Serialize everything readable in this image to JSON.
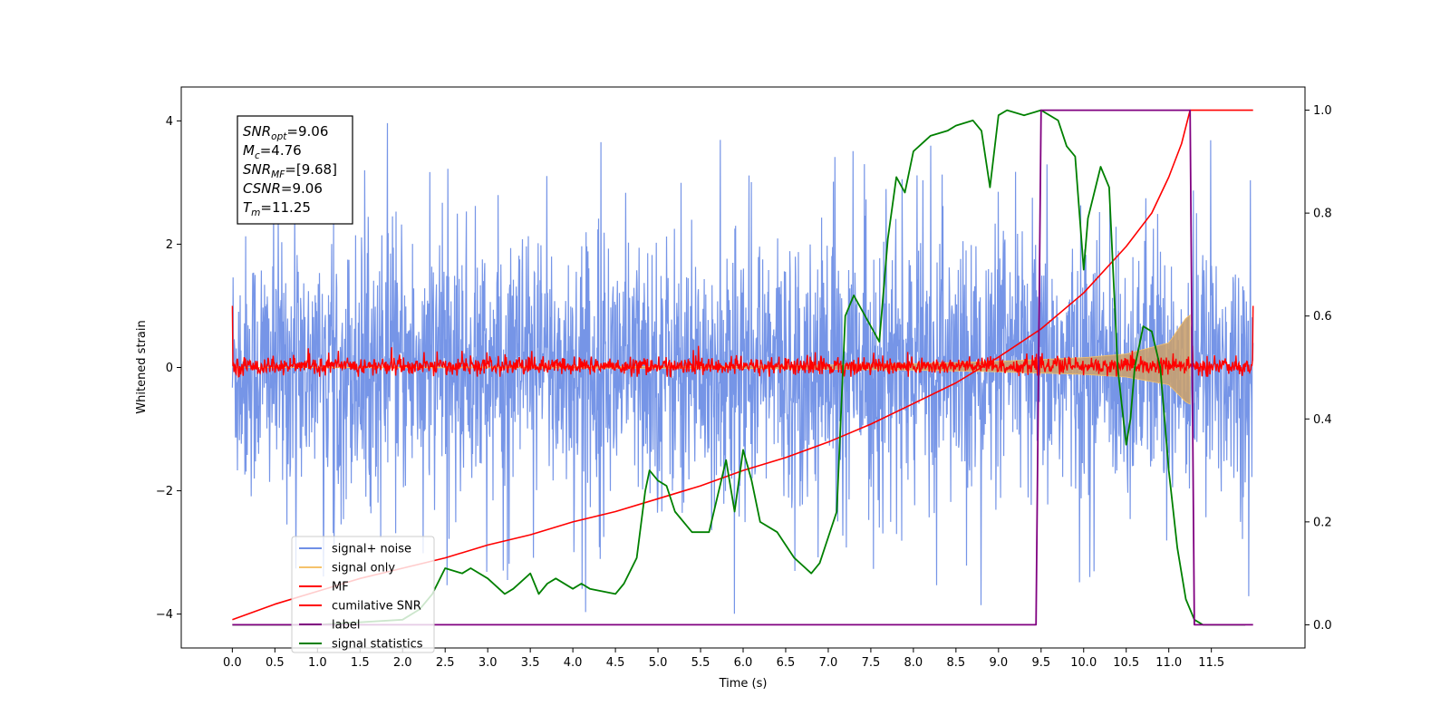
{
  "chart_data": {
    "type": "line",
    "xlabel": "Time (s)",
    "ylabel": "Whitened strain",
    "xlim": [
      -0.6,
      12.6
    ],
    "ylim": [
      -4.55,
      4.55
    ],
    "y2lim": [
      -0.045,
      1.045
    ],
    "x_ticks": [
      0.0,
      0.5,
      1.0,
      1.5,
      2.0,
      2.5,
      3.0,
      3.5,
      4.0,
      4.5,
      5.0,
      5.5,
      6.0,
      6.5,
      7.0,
      7.5,
      8.0,
      8.5,
      9.0,
      9.5,
      10.0,
      10.5,
      11.0,
      11.5
    ],
    "x_tick_labels": [
      "0.0",
      "0.5",
      "1.0",
      "1.5",
      "2.0",
      "2.5",
      "3.0",
      "3.5",
      "4.0",
      "4.5",
      "5.0",
      "5.5",
      "6.0",
      "6.5",
      "7.0",
      "7.5",
      "8.0",
      "8.5",
      "9.0",
      "9.5",
      "10.0",
      "10.5",
      "11.0",
      "11.5"
    ],
    "y_ticks": [
      -4,
      -2,
      0,
      2,
      4
    ],
    "y_tick_labels": [
      "−4",
      "−2",
      "0",
      "2",
      "4"
    ],
    "y2_ticks": [
      0.0,
      0.2,
      0.4,
      0.6,
      0.8,
      1.0
    ],
    "y2_tick_labels": [
      "0.0",
      "0.2",
      "0.4",
      "0.6",
      "0.8",
      "1.0"
    ],
    "grid": false,
    "legend": {
      "placement": "lower-left"
    },
    "annotation": {
      "lines": [
        {
          "main": "SNR",
          "sub": "opt",
          "rest": "=9.06"
        },
        {
          "main": "M",
          "sub": "c",
          "rest": "=4.76"
        },
        {
          "main": "SNR",
          "sub": "MF",
          "rest": "=[9.68]"
        },
        {
          "main": "CSNR",
          "sub": "",
          "rest": "=9.06"
        },
        {
          "main": "T",
          "sub": "m",
          "rest": "=11.25"
        }
      ]
    },
    "series": [
      {
        "name": "signal+ noise",
        "axis": "left",
        "color": "#6f8fe6",
        "style": "noise band",
        "x_range": [
          0.0,
          11.99
        ],
        "envelope": [
          -2.6,
          2.6
        ],
        "peaks": [
          -4.1,
          4.1
        ]
      },
      {
        "name": "signal only",
        "axis": "left",
        "color": "#f5c26b",
        "style": "chirp",
        "x_range": [
          0.0,
          11.25
        ],
        "amplitude_envelope": {
          "x": [
            0.0,
            6.0,
            8.0,
            9.0,
            10.0,
            10.5,
            11.0,
            11.2,
            11.25
          ],
          "y": [
            0.0,
            0.02,
            0.06,
            0.1,
            0.16,
            0.22,
            0.4,
            0.8,
            0.85
          ]
        }
      },
      {
        "name": "MF",
        "axis": "left",
        "color": "#ff0000",
        "style": "noise band",
        "x_range": [
          0.0,
          11.99
        ],
        "envelope": [
          -0.12,
          0.17
        ],
        "peaks": [
          -0.15,
          0.35
        ],
        "edge_values": [
          1.0,
          1.0
        ]
      },
      {
        "name": "cumilative SNR",
        "axis": "right",
        "color": "#ff0000",
        "x": [
          0.0,
          0.5,
          1.0,
          1.5,
          2.0,
          2.5,
          3.0,
          3.5,
          4.0,
          4.5,
          5.0,
          5.5,
          6.0,
          6.5,
          7.0,
          7.5,
          8.0,
          8.5,
          9.0,
          9.5,
          10.0,
          10.5,
          10.8,
          11.0,
          11.15,
          11.25,
          11.99
        ],
        "y": [
          0.01,
          0.04,
          0.065,
          0.09,
          0.11,
          0.13,
          0.155,
          0.175,
          0.2,
          0.22,
          0.245,
          0.27,
          0.3,
          0.325,
          0.355,
          0.39,
          0.43,
          0.47,
          0.52,
          0.575,
          0.645,
          0.735,
          0.8,
          0.87,
          0.935,
          1.0,
          1.0
        ]
      },
      {
        "name": "label",
        "axis": "right",
        "color": "#800080",
        "x": [
          0.0,
          9.44,
          9.5,
          11.25,
          11.3,
          11.99
        ],
        "y": [
          0.0,
          0.0,
          1.0,
          1.0,
          0.0,
          0.0
        ]
      },
      {
        "name": "signal statistics",
        "axis": "right",
        "color": "#008000",
        "x": [
          0.0,
          0.5,
          1.0,
          1.5,
          2.0,
          2.2,
          2.35,
          2.5,
          2.7,
          2.8,
          3.0,
          3.2,
          3.3,
          3.5,
          3.6,
          3.7,
          3.8,
          4.0,
          4.1,
          4.2,
          4.5,
          4.6,
          4.75,
          4.85,
          4.9,
          5.0,
          5.1,
          5.2,
          5.4,
          5.6,
          5.8,
          5.9,
          6.0,
          6.1,
          6.2,
          6.4,
          6.6,
          6.8,
          6.9,
          7.0,
          7.1,
          7.2,
          7.3,
          7.4,
          7.6,
          7.7,
          7.8,
          7.9,
          8.0,
          8.2,
          8.4,
          8.5,
          8.7,
          8.8,
          8.9,
          9.0,
          9.1,
          9.3,
          9.5,
          9.7,
          9.8,
          9.9,
          10.0,
          10.05,
          10.2,
          10.3,
          10.4,
          10.5,
          10.55,
          10.6,
          10.7,
          10.8,
          10.9,
          11.0,
          11.1,
          11.2,
          11.3,
          11.4,
          11.6,
          11.9
        ],
        "y": [
          0.0,
          0.0,
          0.0,
          0.005,
          0.01,
          0.03,
          0.06,
          0.11,
          0.1,
          0.11,
          0.09,
          0.06,
          0.07,
          0.1,
          0.06,
          0.08,
          0.09,
          0.07,
          0.08,
          0.07,
          0.06,
          0.08,
          0.13,
          0.26,
          0.3,
          0.28,
          0.27,
          0.22,
          0.18,
          0.18,
          0.32,
          0.22,
          0.34,
          0.28,
          0.2,
          0.18,
          0.13,
          0.1,
          0.12,
          0.17,
          0.22,
          0.6,
          0.64,
          0.61,
          0.55,
          0.75,
          0.87,
          0.84,
          0.92,
          0.95,
          0.96,
          0.97,
          0.98,
          0.96,
          0.85,
          0.99,
          1.0,
          0.99,
          1.0,
          0.98,
          0.93,
          0.91,
          0.69,
          0.79,
          0.89,
          0.85,
          0.5,
          0.35,
          0.4,
          0.5,
          0.58,
          0.57,
          0.5,
          0.3,
          0.15,
          0.05,
          0.01,
          0.0,
          0.0,
          0.0
        ]
      }
    ]
  }
}
